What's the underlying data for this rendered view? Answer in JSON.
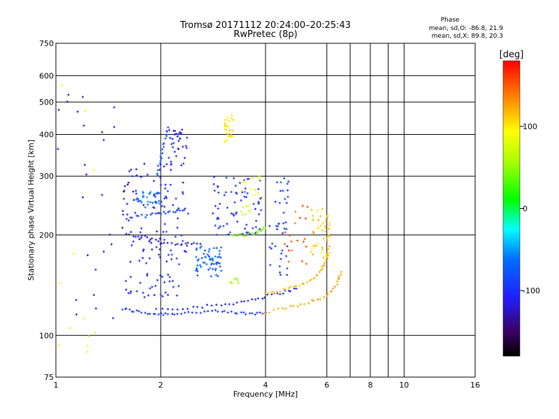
{
  "chart_data": {
    "type": "scatter",
    "title": "Tromsø 20171112 20:24:00–20:25:43",
    "subtitle": "RwPretec (8p)",
    "xlabel": "Frequency [MHz]",
    "ylabel": "Stationary phase Virtual Height [km]",
    "x_scale": "log",
    "y_scale": "log",
    "xlim": [
      1,
      16
    ],
    "ylim": [
      75,
      750
    ],
    "x_ticks": [
      1,
      2,
      4,
      6,
      8,
      10,
      16
    ],
    "x_tick_labels": [
      "1",
      "2",
      "4",
      "6",
      "8",
      "10",
      "16"
    ],
    "x_gridlines": [
      2,
      4,
      6,
      7,
      8,
      9,
      10
    ],
    "y_ticks": [
      75,
      100,
      200,
      300,
      400,
      500,
      600,
      750
    ],
    "y_tick_labels": [
      "75",
      "100",
      "200",
      "300",
      "400",
      "500",
      "600",
      "750"
    ],
    "grid": true,
    "phase_stats": {
      "heading": "Phase",
      "line_o": "mean, sd,O: -86.8, 21.9",
      "line_x": "mean, sd,X: 89.8, 20.3"
    },
    "colorbar": {
      "label": "[deg]",
      "range": [
        -180,
        180
      ],
      "ticks": [
        100,
        0,
        -100
      ],
      "tick_labels": [
        "100",
        "0",
        "-100"
      ]
    },
    "colors": {
      "grid": "#000000",
      "background": "#ffffff"
    },
    "series": [
      {
        "type": "trace",
        "phase": -95,
        "points": [
          [
            1.55,
            120
          ],
          [
            1.7,
            118
          ],
          [
            1.9,
            116
          ],
          [
            2.1,
            116
          ],
          [
            2.4,
            117
          ],
          [
            2.8,
            118
          ],
          [
            3.2,
            117
          ],
          [
            3.6,
            116
          ],
          [
            4.0,
            117
          ]
        ]
      },
      {
        "type": "trace",
        "phase": -110,
        "points": [
          [
            1.95,
            120
          ],
          [
            2.4,
            121
          ],
          [
            2.9,
            123
          ],
          [
            3.4,
            126
          ],
          [
            3.9,
            130
          ],
          [
            4.4,
            134
          ],
          [
            4.9,
            138
          ]
        ]
      },
      {
        "type": "trace",
        "phase": 118,
        "points": [
          [
            4.0,
            133
          ],
          [
            4.5,
            137
          ],
          [
            5.0,
            141
          ],
          [
            5.5,
            148
          ],
          [
            5.8,
            158
          ],
          [
            6.0,
            170
          ],
          [
            6.1,
            185
          ]
        ]
      },
      {
        "type": "trace",
        "phase": 125,
        "points": [
          [
            3.9,
            116
          ],
          [
            4.6,
            121
          ],
          [
            5.3,
            126
          ],
          [
            6.0,
            131
          ],
          [
            6.4,
            142
          ],
          [
            6.6,
            155
          ]
        ]
      },
      {
        "type": "trace",
        "phase": -118,
        "points": [
          [
            1.6,
            200
          ],
          [
            1.8,
            197
          ],
          [
            2.0,
            190
          ],
          [
            2.3,
            188
          ],
          [
            2.6,
            188
          ]
        ]
      },
      {
        "type": "trace",
        "phase": 45,
        "points": [
          [
            3.2,
            200
          ],
          [
            3.5,
            200
          ],
          [
            3.8,
            204
          ],
          [
            4.0,
            210
          ]
        ]
      },
      {
        "type": "trace",
        "phase": -90,
        "points": [
          [
            1.6,
            225
          ],
          [
            1.8,
            228
          ],
          [
            2.0,
            232
          ],
          [
            2.2,
            236
          ],
          [
            2.35,
            240
          ]
        ]
      },
      {
        "type": "trace",
        "phase": -80,
        "points": [
          [
            1.95,
            300
          ],
          [
            2.0,
            340
          ],
          [
            2.05,
            380
          ],
          [
            2.1,
            420
          ]
        ]
      },
      {
        "type": "cluster",
        "phase": -105,
        "x_range": [
          2.1,
          2.4
        ],
        "y_range": [
          360,
          420
        ],
        "count": 25
      },
      {
        "type": "cluster",
        "phase": 100,
        "x_range": [
          3.05,
          3.25
        ],
        "y_range": [
          380,
          460
        ],
        "count": 30
      },
      {
        "type": "cluster",
        "phase": -70,
        "x_range": [
          2.5,
          3.0
        ],
        "y_range": [
          150,
          185
        ],
        "count": 60
      },
      {
        "type": "cluster",
        "phase": -60,
        "x_range": [
          1.7,
          2.0
        ],
        "y_range": [
          240,
          270
        ],
        "count": 30
      },
      {
        "type": "cluster",
        "phase": -115,
        "x_range": [
          1.55,
          2.1
        ],
        "y_range": [
          130,
          330
        ],
        "count": 90
      },
      {
        "type": "cluster",
        "phase": -105,
        "x_range": [
          2.0,
          2.4
        ],
        "y_range": [
          130,
          360
        ],
        "count": 55
      },
      {
        "type": "cluster",
        "phase": -100,
        "x_range": [
          2.8,
          3.9
        ],
        "y_range": [
          200,
          300
        ],
        "count": 70
      },
      {
        "type": "cluster",
        "phase": -95,
        "x_range": [
          4.1,
          4.7
        ],
        "y_range": [
          150,
          300
        ],
        "count": 40
      },
      {
        "type": "cluster",
        "phase": 60,
        "x_range": [
          3.15,
          3.35
        ],
        "y_range": [
          142,
          148
        ],
        "count": 8
      },
      {
        "type": "cluster",
        "phase": 110,
        "x_range": [
          5.4,
          6.2
        ],
        "y_range": [
          170,
          240
        ],
        "count": 45
      },
      {
        "type": "cluster",
        "phase": 150,
        "x_range": [
          4.5,
          5.5
        ],
        "y_range": [
          160,
          250
        ],
        "count": 20
      },
      {
        "type": "cluster",
        "phase": 80,
        "x_range": [
          3.4,
          4.0
        ],
        "y_range": [
          230,
          300
        ],
        "count": 20
      },
      {
        "type": "cluster",
        "phase": -120,
        "x_range": [
          1.0,
          1.5
        ],
        "y_range": [
          110,
          560
        ],
        "count": 25
      },
      {
        "type": "cluster",
        "phase": 90,
        "x_range": [
          1.0,
          1.3
        ],
        "y_range": [
          82,
          600
        ],
        "count": 12
      }
    ]
  }
}
